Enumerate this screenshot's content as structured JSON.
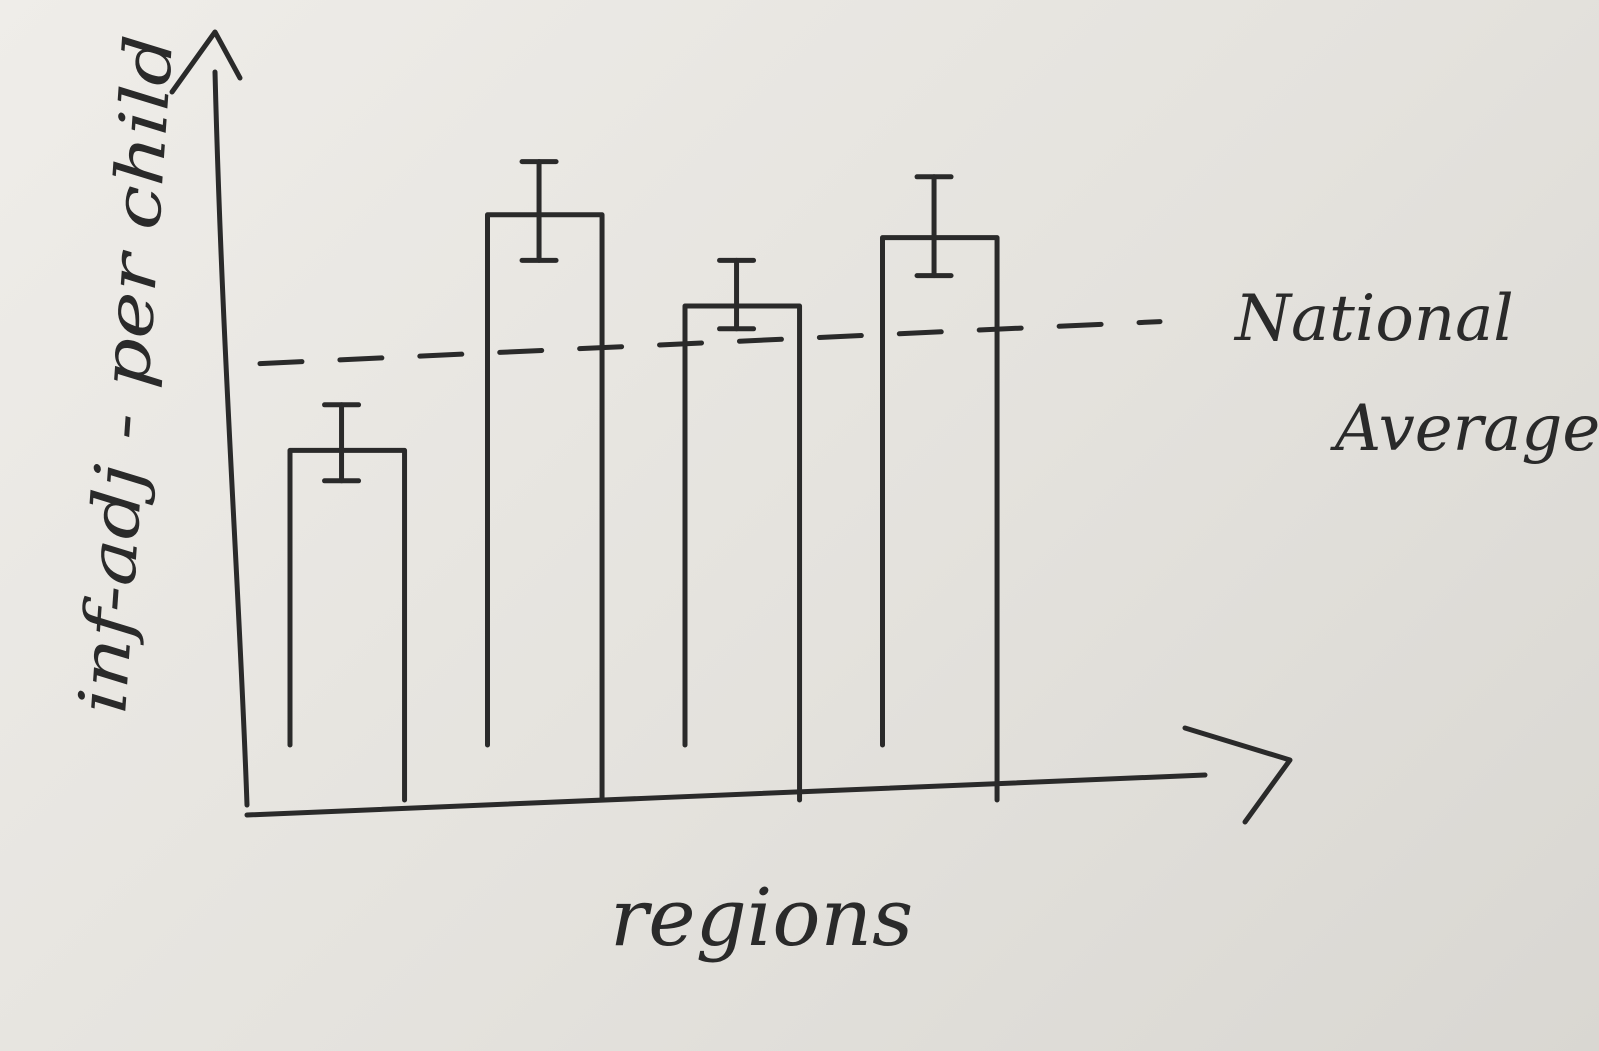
{
  "chart_data": {
    "type": "bar",
    "title": "",
    "xlabel": "regions",
    "ylabel": "inf-adj - per child",
    "categories": [
      "",
      "",
      "",
      ""
    ],
    "values": [
      46,
      77,
      65,
      74
    ],
    "error_bars": [
      {
        "low": 42,
        "high": 52
      },
      {
        "low": 71,
        "high": 84
      },
      {
        "low": 62,
        "high": 71
      },
      {
        "low": 69,
        "high": 82
      }
    ],
    "reference_line": {
      "label": "National Average",
      "value": 59,
      "style": "dashed"
    },
    "ylim": [
      0,
      100
    ],
    "grid": false,
    "legend": "none"
  }
}
